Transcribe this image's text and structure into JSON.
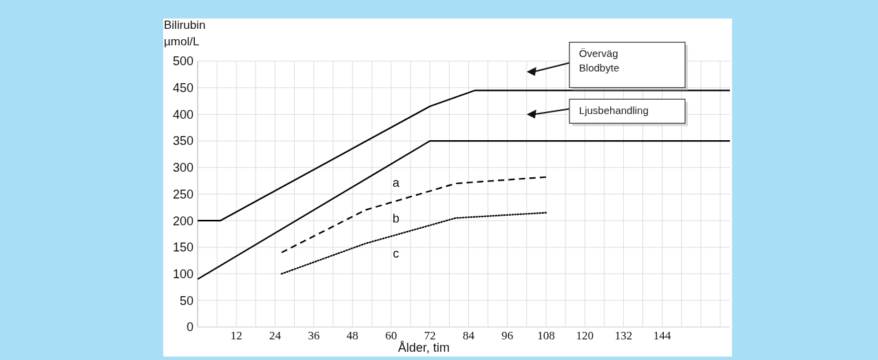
{
  "chart_data": {
    "type": "line",
    "ylabel": "Bilirubin\nµmol/L",
    "xlabel": "Ålder, tim",
    "xlim": [
      0,
      165
    ],
    "xticks": [
      {
        "value": 0,
        "label": null
      },
      12,
      24,
      36,
      48,
      60,
      72,
      84,
      96,
      108,
      120,
      132,
      144
    ],
    "ylim": [
      0,
      500
    ],
    "yticks": [
      0,
      50,
      100,
      150,
      200,
      250,
      300,
      350,
      400,
      450,
      500
    ],
    "grid": true,
    "marker": "none",
    "series": [
      {
        "color": "#000000",
        "line_style": "solid",
        "x": [
          0,
          7,
          72,
          86,
          165
        ],
        "values": [
          200,
          200,
          415,
          445,
          445
        ]
      },
      {
        "color": "#000000",
        "line_style": "solid",
        "x": [
          0,
          72,
          165
        ],
        "values": [
          90,
          350,
          350
        ]
      },
      {
        "color": "#000000",
        "line_style": "dashed",
        "x": [
          26,
          52,
          80,
          108
        ],
        "values": [
          140,
          220,
          270,
          282
        ]
      },
      {
        "color": "#000000",
        "line_style": "dotted",
        "x": [
          26,
          52,
          80,
          108
        ],
        "values": [
          100,
          157,
          205,
          215
        ]
      }
    ],
    "annotations": [
      "a",
      "b",
      "c",
      "Överväg\nBlodbyte",
      "Ljusbehandling"
    ]
  }
}
